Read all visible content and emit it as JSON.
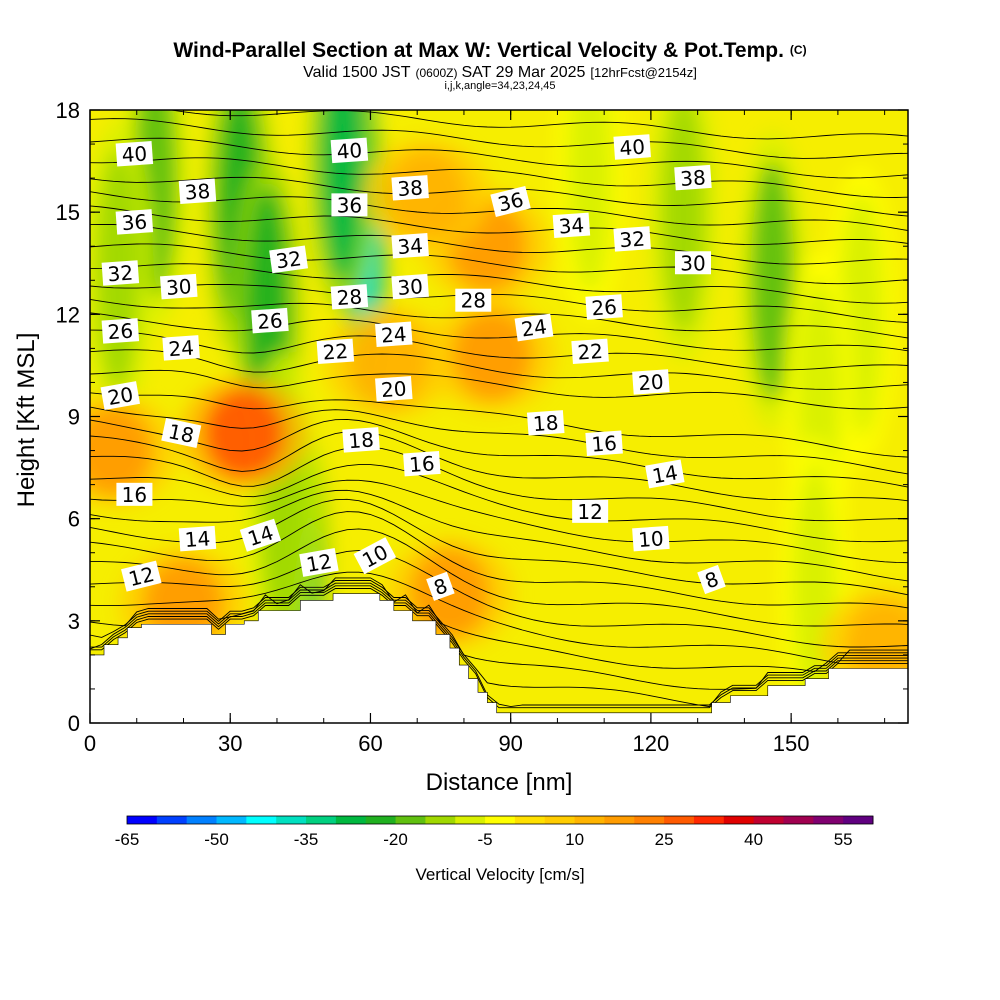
{
  "title": {
    "main": "Wind-Parallel Section at Max W: Vertical Velocity & Pot.Temp.",
    "copyright": "(C)",
    "valid_pre": "Valid 1500 JST",
    "valid_z": "(0600Z)",
    "valid_date": "SAT 29 Mar 2025",
    "forecast": "[12hrFcst@2154z]",
    "params": "i,j,k,angle=34,23,24,45"
  },
  "chart_data": {
    "type": "heatmap",
    "xlabel": "Distance [nm]",
    "ylabel": "Height [Kft MSL]",
    "xlim": [
      0,
      175
    ],
    "ylim": [
      0,
      18
    ],
    "x_ticks": [
      0,
      30,
      60,
      90,
      120,
      150
    ],
    "y_ticks": [
      0,
      3,
      6,
      9,
      12,
      15,
      18
    ],
    "colorbar": {
      "label": "Vertical Velocity [cm/s]",
      "min": -65,
      "max": 60,
      "step": 5,
      "tick_labels": [
        -65,
        -50,
        -35,
        -20,
        -5,
        10,
        25,
        40,
        55
      ],
      "colors": [
        "#0000ff",
        "#0040ff",
        "#0080ff",
        "#00b8ff",
        "#00ffff",
        "#00e0c0",
        "#00d080",
        "#00b840",
        "#20b020",
        "#60c010",
        "#a0d800",
        "#d8f000",
        "#ffff00",
        "#ffe000",
        "#ffcc00",
        "#ffb400",
        "#ff9c00",
        "#ff8000",
        "#ff5a00",
        "#ff2800",
        "#e00000",
        "#c00030",
        "#a00050",
        "#800070",
        "#600080"
      ]
    },
    "terrain": [
      [
        0,
        2.0
      ],
      [
        3,
        2.0
      ],
      [
        3,
        2.3
      ],
      [
        6,
        2.3
      ],
      [
        6,
        2.5
      ],
      [
        8,
        2.5
      ],
      [
        8,
        2.8
      ],
      [
        11,
        2.8
      ],
      [
        11,
        2.9
      ],
      [
        26,
        2.9
      ],
      [
        26,
        2.6
      ],
      [
        29,
        2.6
      ],
      [
        29,
        2.9
      ],
      [
        33,
        2.9
      ],
      [
        33,
        3.0
      ],
      [
        36,
        3.0
      ],
      [
        36,
        3.3
      ],
      [
        45,
        3.3
      ],
      [
        45,
        3.6
      ],
      [
        52,
        3.6
      ],
      [
        52,
        3.8
      ],
      [
        62,
        3.8
      ],
      [
        62,
        3.6
      ],
      [
        65,
        3.6
      ],
      [
        65,
        3.3
      ],
      [
        69,
        3.3
      ],
      [
        69,
        3.0
      ],
      [
        74,
        3.0
      ],
      [
        74,
        2.6
      ],
      [
        77,
        2.6
      ],
      [
        77,
        2.2
      ],
      [
        79,
        2.2
      ],
      [
        79,
        1.7
      ],
      [
        81,
        1.7
      ],
      [
        81,
        1.3
      ],
      [
        83,
        1.3
      ],
      [
        83,
        0.9
      ],
      [
        85,
        0.9
      ],
      [
        85,
        0.6
      ],
      [
        87,
        0.6
      ],
      [
        87,
        0.3
      ],
      [
        133,
        0.3
      ],
      [
        133,
        0.6
      ],
      [
        137,
        0.6
      ],
      [
        137,
        0.8
      ],
      [
        145,
        0.8
      ],
      [
        145,
        1.1
      ],
      [
        153,
        1.1
      ],
      [
        153,
        1.3
      ],
      [
        158,
        1.3
      ],
      [
        158,
        1.6
      ],
      [
        175,
        1.6
      ]
    ],
    "velocity_features": [
      {
        "x": 57.5,
        "y": 15.5,
        "w": -62
      },
      {
        "x": 59,
        "y": 13.8,
        "w": -40
      },
      {
        "x": 54,
        "y": 16.5,
        "w": -30
      },
      {
        "x": 32,
        "y": 15.2,
        "w": -25
      },
      {
        "x": 38,
        "y": 12.2,
        "w": -22
      },
      {
        "x": 14,
        "y": 16.0,
        "w": -18
      },
      {
        "x": 6,
        "y": 13.3,
        "w": -14
      },
      {
        "x": 44,
        "y": 4.6,
        "w": -26
      },
      {
        "x": 41,
        "y": 6.5,
        "w": -12
      },
      {
        "x": 146,
        "y": 13.0,
        "w": -18
      },
      {
        "x": 127,
        "y": 15.0,
        "w": -12
      },
      {
        "x": 107,
        "y": 16.2,
        "w": -10
      },
      {
        "x": 165,
        "y": 12.0,
        "w": -10
      },
      {
        "x": 156,
        "y": 9.5,
        "w": -8
      },
      {
        "x": 155,
        "y": 4.0,
        "w": -6
      },
      {
        "x": 85,
        "y": 14.0,
        "w": 16
      },
      {
        "x": 33,
        "y": 8.5,
        "w": 26
      },
      {
        "x": 5,
        "y": 8.0,
        "w": 16
      },
      {
        "x": 20,
        "y": 3.5,
        "w": 18
      },
      {
        "x": 77,
        "y": 3.8,
        "w": 16
      },
      {
        "x": 86,
        "y": 10.8,
        "w": 15
      },
      {
        "x": 170,
        "y": 2.3,
        "w": 14
      },
      {
        "x": 64,
        "y": 10.6,
        "w": 12
      },
      {
        "x": 72,
        "y": 15.5,
        "w": 10
      }
    ],
    "theta_labels": [
      {
        "text": "40",
        "x": 9.5,
        "y": 16.7,
        "rot": -4
      },
      {
        "text": "38",
        "x": 23,
        "y": 15.6,
        "rot": -4
      },
      {
        "text": "36",
        "x": 9.5,
        "y": 14.7,
        "rot": -4
      },
      {
        "text": "32",
        "x": 6.5,
        "y": 13.2,
        "rot": -4
      },
      {
        "text": "30",
        "x": 19,
        "y": 12.8,
        "rot": -4
      },
      {
        "text": "26",
        "x": 6.5,
        "y": 11.5,
        "rot": -4
      },
      {
        "text": "24",
        "x": 19.5,
        "y": 11.0,
        "rot": -4
      },
      {
        "text": "20",
        "x": 6.5,
        "y": 9.6,
        "rot": -10
      },
      {
        "text": "18",
        "x": 19.5,
        "y": 8.5,
        "rot": 12
      },
      {
        "text": "16",
        "x": 9.5,
        "y": 6.7,
        "rot": 0
      },
      {
        "text": "14",
        "x": 23,
        "y": 5.4,
        "rot": -4
      },
      {
        "text": "12",
        "x": 11,
        "y": 4.3,
        "rot": -14
      },
      {
        "text": "14",
        "x": 36.5,
        "y": 5.5,
        "rot": -18
      },
      {
        "text": "32",
        "x": 42.5,
        "y": 13.6,
        "rot": -8
      },
      {
        "text": "26",
        "x": 38.5,
        "y": 11.8,
        "rot": -4
      },
      {
        "text": "22",
        "x": 52.5,
        "y": 10.9,
        "rot": -4
      },
      {
        "text": "40",
        "x": 55.5,
        "y": 16.8,
        "rot": -4
      },
      {
        "text": "36",
        "x": 55.5,
        "y": 15.2,
        "rot": 0
      },
      {
        "text": "28",
        "x": 55.5,
        "y": 12.5,
        "rot": -4
      },
      {
        "text": "38",
        "x": 68.5,
        "y": 15.7,
        "rot": -4
      },
      {
        "text": "34",
        "x": 68.5,
        "y": 14.0,
        "rot": -4
      },
      {
        "text": "30",
        "x": 68.5,
        "y": 12.8,
        "rot": -4
      },
      {
        "text": "24",
        "x": 65,
        "y": 11.4,
        "rot": -4
      },
      {
        "text": "20",
        "x": 65,
        "y": 9.8,
        "rot": -4
      },
      {
        "text": "18",
        "x": 58,
        "y": 8.3,
        "rot": -4
      },
      {
        "text": "12",
        "x": 49,
        "y": 4.7,
        "rot": -10
      },
      {
        "text": "10",
        "x": 61,
        "y": 4.9,
        "rot": -28
      },
      {
        "text": "16",
        "x": 71,
        "y": 7.6,
        "rot": -4
      },
      {
        "text": "8",
        "x": 75,
        "y": 4.0,
        "rot": -20
      },
      {
        "text": "28",
        "x": 82,
        "y": 12.4,
        "rot": 0
      },
      {
        "text": "36",
        "x": 90,
        "y": 15.3,
        "rot": -14
      },
      {
        "text": "34",
        "x": 103,
        "y": 14.6,
        "rot": -4
      },
      {
        "text": "24",
        "x": 95,
        "y": 11.6,
        "rot": -8
      },
      {
        "text": "18",
        "x": 97.5,
        "y": 8.8,
        "rot": -4
      },
      {
        "text": "16",
        "x": 110,
        "y": 8.2,
        "rot": -4
      },
      {
        "text": "12",
        "x": 107,
        "y": 6.2,
        "rot": 0
      },
      {
        "text": "40",
        "x": 116,
        "y": 16.9,
        "rot": -4
      },
      {
        "text": "38",
        "x": 129,
        "y": 16.0,
        "rot": -4
      },
      {
        "text": "32",
        "x": 116,
        "y": 14.2,
        "rot": -4
      },
      {
        "text": "26",
        "x": 110,
        "y": 12.2,
        "rot": -4
      },
      {
        "text": "30",
        "x": 129,
        "y": 13.5,
        "rot": 0
      },
      {
        "text": "22",
        "x": 107,
        "y": 10.9,
        "rot": -4
      },
      {
        "text": "20",
        "x": 120,
        "y": 10.0,
        "rot": -4
      },
      {
        "text": "14",
        "x": 123,
        "y": 7.3,
        "rot": -10
      },
      {
        "text": "10",
        "x": 120,
        "y": 5.4,
        "rot": -4
      },
      {
        "text": "8",
        "x": 133,
        "y": 4.2,
        "rot": -20
      }
    ]
  }
}
